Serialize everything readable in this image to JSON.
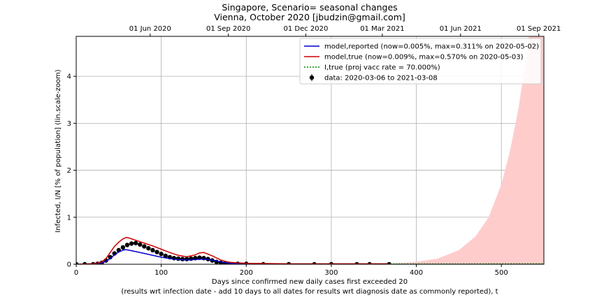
{
  "chart_data": {
    "type": "line",
    "title_line1": "Singapore, Scenario= seasonal changes",
    "title_line2": "Vienna, October 2020 [jbudzin@gmail.com]",
    "xlabel_line1": "Days since confirmed new daily cases first exceeded 20",
    "xlabel_line2": "(results wrt infection date - add 10 days to all dates for results wrt diagnosis date as commonly reported), t",
    "ylabel": "Infected, I/N [% of population] (lin.scale-zoom)",
    "xlim": [
      0,
      550
    ],
    "ylim": [
      0,
      4.85
    ],
    "x_ticks": [
      0,
      100,
      200,
      300,
      400,
      500
    ],
    "y_ticks": [
      0,
      1,
      2,
      3,
      4
    ],
    "top_axis": {
      "labels": [
        "01 Jun 2020",
        "01 Sep 2020",
        "01 Dec 2020",
        "01 Mar 2021",
        "01 Jun 2021",
        "01 Sep 2021"
      ],
      "positions_days": [
        87,
        179,
        270,
        360,
        452,
        544
      ]
    },
    "grid": true,
    "legend_position": "top-right",
    "legend": [
      {
        "label": "model,reported (now=0.005%, max=0.311% on 2020-05-02)",
        "color": "#0000cc",
        "style": "solid"
      },
      {
        "label": "model,true (now=0.009%, max=0.570% on 2020-05-03)",
        "color": "#cc0000",
        "style": "solid"
      },
      {
        "label": "I,true (proj vacc rate = 70.000%)",
        "color": "#008800",
        "style": "dotted"
      },
      {
        "label": "data: 2020-03-06 to 2021-03-08",
        "color": "#000000",
        "style": "errorbar"
      }
    ],
    "series": [
      {
        "name": "model,reported",
        "color": "#0000cc",
        "x": [
          0,
          20,
          30,
          35,
          40,
          45,
          50,
          55,
          58,
          62,
          70,
          80,
          90,
          100,
          110,
          120,
          130,
          140,
          150,
          160,
          170,
          180,
          200,
          250,
          300,
          366
        ],
        "y": [
          0,
          0.01,
          0.03,
          0.06,
          0.12,
          0.2,
          0.26,
          0.3,
          0.311,
          0.3,
          0.27,
          0.23,
          0.19,
          0.15,
          0.12,
          0.1,
          0.09,
          0.1,
          0.11,
          0.09,
          0.05,
          0.02,
          0.01,
          0.005,
          0.005,
          0.005
        ]
      },
      {
        "name": "model,true",
        "color": "#cc0000",
        "x": [
          0,
          20,
          30,
          35,
          40,
          45,
          50,
          55,
          59,
          62,
          70,
          80,
          90,
          100,
          110,
          120,
          130,
          140,
          145,
          150,
          160,
          170,
          180,
          200,
          250,
          300,
          366
        ],
        "y": [
          0,
          0.01,
          0.05,
          0.12,
          0.25,
          0.38,
          0.47,
          0.54,
          0.57,
          0.56,
          0.51,
          0.45,
          0.39,
          0.32,
          0.25,
          0.19,
          0.16,
          0.2,
          0.24,
          0.25,
          0.18,
          0.09,
          0.04,
          0.02,
          0.01,
          0.01,
          0.009
        ]
      },
      {
        "name": "I,true (proj vacc rate = 70.000%)",
        "color": "#008800",
        "x": [
          366,
          400,
          450,
          500,
          550
        ],
        "y": [
          0.005,
          0.005,
          0.006,
          0.008,
          0.01
        ]
      }
    ],
    "projection_band": {
      "color": "#ffcccc",
      "x": [
        366,
        400,
        425,
        450,
        470,
        485,
        500,
        510,
        520,
        530,
        540,
        550
      ],
      "y_upper": [
        0.01,
        0.05,
        0.12,
        0.3,
        0.6,
        1.0,
        1.7,
        2.4,
        3.3,
        4.5,
        6.0,
        8.0
      ]
    },
    "data_points": {
      "name": "data: 2020-03-06 to 2021-03-08",
      "color": "#000000",
      "x": [
        0,
        10,
        20,
        25,
        30,
        35,
        40,
        45,
        50,
        55,
        60,
        65,
        70,
        75,
        80,
        85,
        90,
        95,
        100,
        105,
        110,
        115,
        120,
        125,
        130,
        135,
        140,
        145,
        150,
        155,
        160,
        165,
        170,
        175,
        180,
        190,
        200,
        220,
        250,
        280,
        300,
        330,
        345,
        368
      ],
      "y": [
        0.0,
        0.0,
        0.0,
        0.01,
        0.03,
        0.08,
        0.15,
        0.23,
        0.3,
        0.36,
        0.41,
        0.44,
        0.45,
        0.42,
        0.38,
        0.34,
        0.3,
        0.26,
        0.22,
        0.18,
        0.15,
        0.13,
        0.12,
        0.11,
        0.11,
        0.12,
        0.13,
        0.14,
        0.13,
        0.11,
        0.08,
        0.05,
        0.03,
        0.02,
        0.01,
        0.01,
        0.01,
        0.0,
        0.0,
        0.0,
        0.0,
        0.0,
        0.0,
        0.0
      ]
    }
  }
}
